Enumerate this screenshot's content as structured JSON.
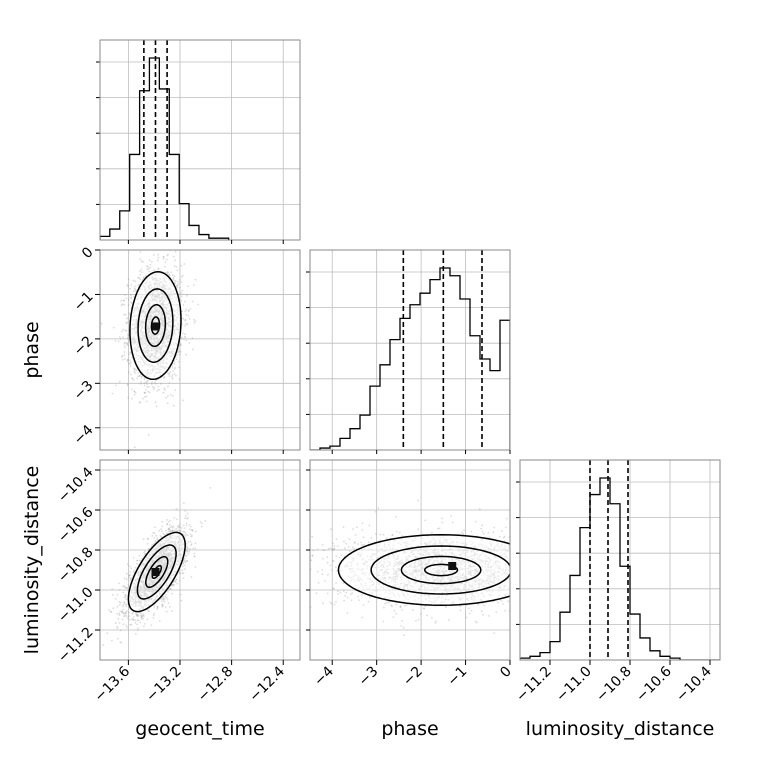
{
  "chart_data": {
    "type": "corner",
    "title": "",
    "parameters": [
      "geocent_time",
      "phase",
      "luminosity_distance"
    ],
    "axis_ranges": {
      "geocent_time": [
        -13.82,
        -12.27
      ],
      "phase": [
        -4.5,
        0.0
      ],
      "luminosity_distance": [
        -11.35,
        -10.35
      ]
    },
    "ticks": {
      "geocent_time": [
        -13.6,
        -13.2,
        -12.8,
        -12.4
      ],
      "phase_x": [
        -4,
        -3,
        -2,
        -1,
        0
      ],
      "phase_y": [
        0,
        -1,
        -2,
        -3,
        -4
      ],
      "luminosity_distance_x": [
        -11.2,
        -11.0,
        -10.8,
        -10.6,
        -10.4
      ],
      "luminosity_distance_y": [
        -10.4,
        -10.6,
        -10.8,
        -11.0,
        -11.2
      ]
    },
    "tick_labels": {
      "geocent_time": [
        "−13.6",
        "−13.2",
        "−12.8",
        "−12.4"
      ],
      "phase_x": [
        "−4",
        "−3",
        "−2",
        "−1",
        "0"
      ],
      "phase_y": [
        "0",
        "−1",
        "−2",
        "−3",
        "−4"
      ],
      "luminosity_distance_x": [
        "−11.2",
        "−11.0",
        "−10.8",
        "−10.6",
        "−10.4"
      ],
      "luminosity_distance_y": [
        "−10.4",
        "−10.6",
        "−10.8",
        "−11.0",
        "−11.2"
      ]
    },
    "grid": true,
    "histograms": {
      "geocent_time": {
        "bin_edges": [
          -13.82,
          -13.744,
          -13.667,
          -13.59,
          -13.513,
          -13.437,
          -13.36,
          -13.283,
          -13.206,
          -13.13,
          -13.053,
          -12.976,
          -12.9,
          -12.823
        ],
        "counts": [
          2,
          6,
          16,
          47,
          82,
          100,
          83,
          47,
          20,
          8,
          3,
          1,
          1
        ],
        "quantiles": [
          -13.48,
          -13.39,
          -13.3
        ]
      },
      "phase": {
        "bin_edges": [
          -4.5,
          -4.275,
          -4.05,
          -3.825,
          -3.6,
          -3.375,
          -3.15,
          -2.925,
          -2.7,
          -2.475,
          -2.25,
          -2.025,
          -1.8,
          -1.575,
          -1.35,
          -1.125,
          -0.9,
          -0.675,
          -0.45,
          -0.225,
          0.0
        ],
        "counts": [
          0,
          1,
          2,
          6,
          11,
          18,
          33,
          44,
          57,
          68,
          75,
          81,
          88,
          94,
          90,
          78,
          59,
          47,
          41,
          67
        ],
        "quantiles": [
          -2.4,
          -1.5,
          -0.63
        ]
      },
      "luminosity_distance": {
        "bin_edges": [
          -11.35,
          -11.3,
          -11.25,
          -11.2,
          -11.15,
          -11.1,
          -11.05,
          -11.0,
          -10.95,
          -10.9,
          -10.85,
          -10.8,
          -10.75,
          -10.7,
          -10.65,
          -10.6,
          -10.55,
          -10.5,
          -10.45,
          -10.4,
          -10.35
        ],
        "counts": [
          1,
          2,
          4,
          10,
          26,
          46,
          72,
          90,
          99,
          85,
          51,
          25,
          12,
          5,
          2,
          1,
          0,
          0,
          0,
          0
        ],
        "quantiles": [
          -11.0,
          -10.91,
          -10.81
        ]
      }
    },
    "density_2d": [
      {
        "x": "geocent_time",
        "y": "phase",
        "center": [
          -13.39,
          -1.7
        ],
        "sigma": [
          0.09,
          0.55
        ],
        "rho": 0.1,
        "peak": [
          -13.39,
          -1.72
        ]
      },
      {
        "x": "geocent_time",
        "y": "luminosity_distance",
        "center": [
          -13.38,
          -10.91
        ],
        "sigma": [
          0.1,
          0.09
        ],
        "rho": 0.68,
        "peak": [
          -13.39,
          -10.91
        ]
      },
      {
        "x": "phase",
        "y": "luminosity_distance",
        "center": [
          -1.55,
          -10.9
        ],
        "sigma": [
          1.05,
          0.08
        ],
        "rho": 0.0,
        "peak": [
          -1.3,
          -10.88
        ]
      }
    ]
  }
}
